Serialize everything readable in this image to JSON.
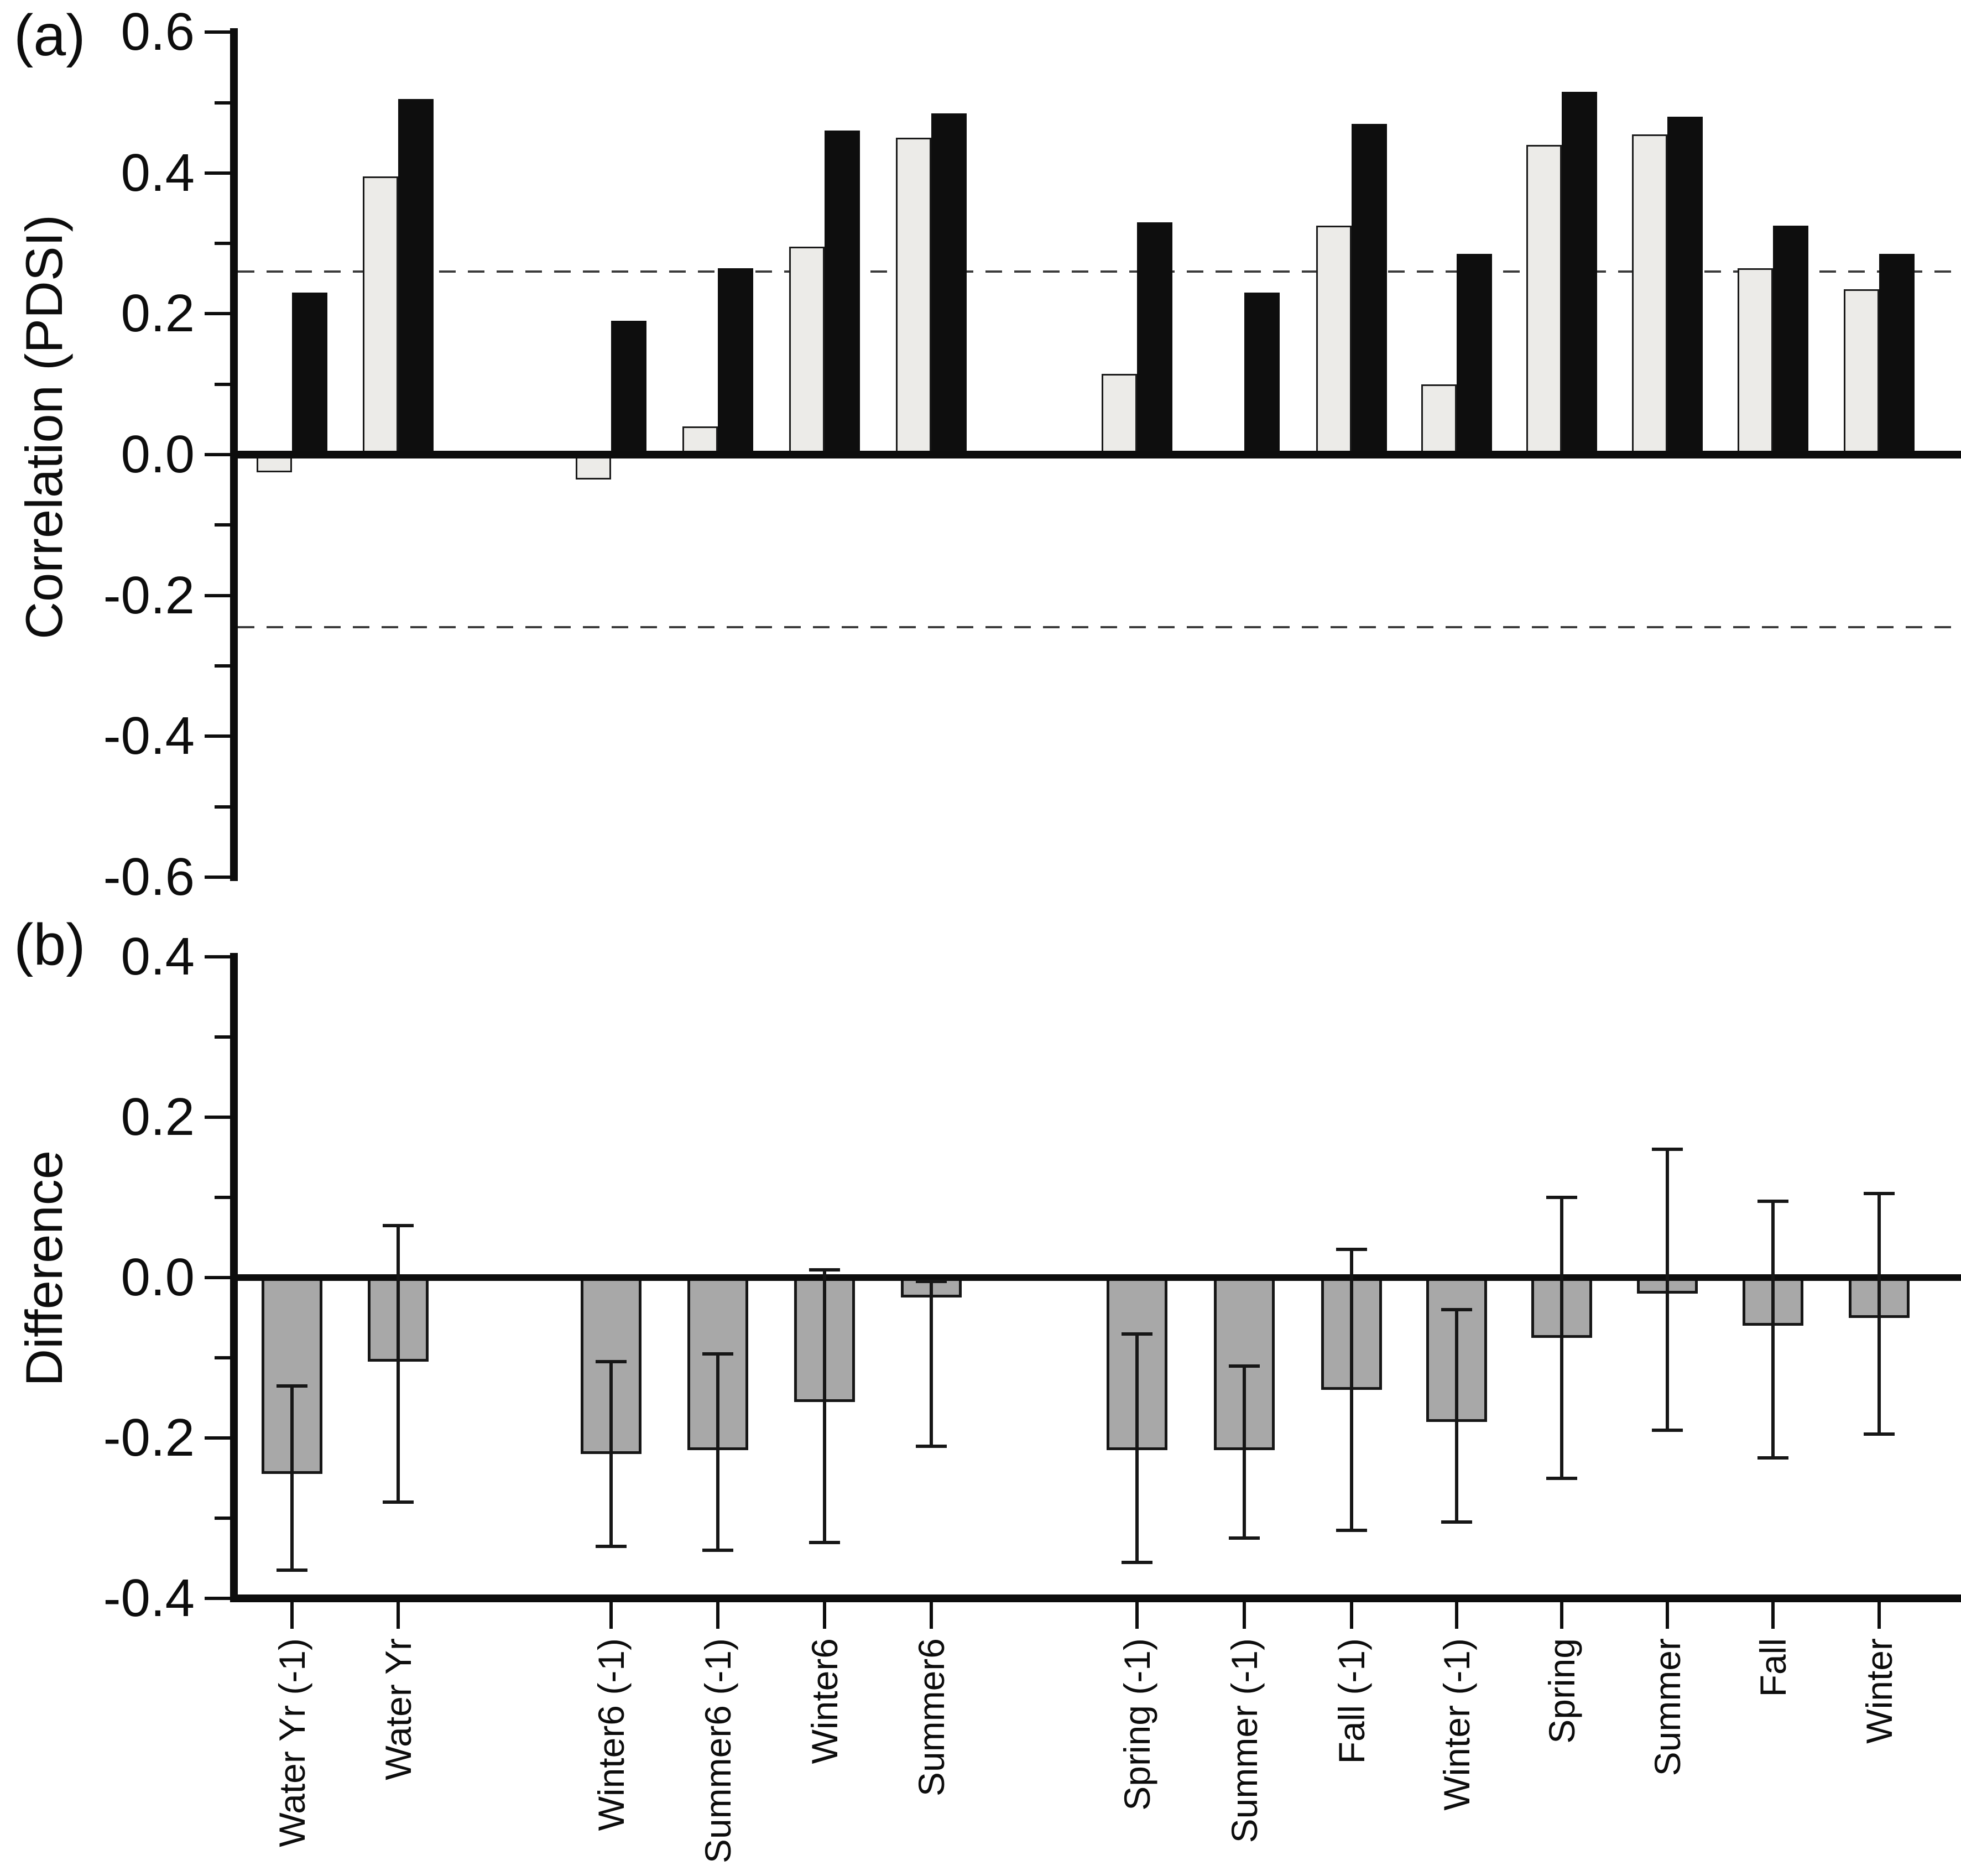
{
  "figure": {
    "background_color": "#ffffff",
    "ink_color": "#0d0d0d"
  },
  "chart_data": [
    {
      "panel": "a",
      "panel_label": "(a)",
      "type": "bar",
      "title": "",
      "xlabel": "",
      "ylabel": "Correlation (PDSI)",
      "ylim": [
        -0.6,
        0.6
      ],
      "ytick_values": [
        0.6,
        0.4,
        0.2,
        0.0,
        -0.2,
        -0.4,
        -0.6
      ],
      "ytick_labels": [
        "0.6",
        "0.4",
        "0.2",
        "0.0",
        "-0.2",
        "-0.4",
        "-0.6"
      ],
      "ytick_minor": [
        0.5,
        0.3,
        0.1,
        -0.1,
        -0.3,
        -0.5
      ],
      "grid": false,
      "legend": "none",
      "significance_lines": [
        0.26,
        -0.245
      ],
      "categories": [
        "Water Yr (-1)",
        "Water Yr",
        "Winter6 (-1)",
        "Summer6 (-1)",
        "Winter6",
        "Summer6",
        "Spring (-1)",
        "Summer (-1)",
        "Fall (-1)",
        "Winter (-1)",
        "Spring",
        "Summer",
        "Fall",
        "Winter"
      ],
      "series": [
        {
          "name": "light-gray-bars",
          "color": "#ECEBE8",
          "values": [
            -0.025,
            0.395,
            -0.035,
            0.04,
            0.295,
            0.45,
            0.115,
            0.0,
            0.325,
            0.1,
            0.44,
            0.455,
            0.265,
            0.235
          ]
        },
        {
          "name": "black-bars",
          "color": "#0E0E0E",
          "values": [
            0.23,
            0.505,
            0.19,
            0.265,
            0.46,
            0.485,
            0.33,
            0.23,
            0.47,
            0.285,
            0.515,
            0.48,
            0.325,
            0.285
          ]
        }
      ]
    },
    {
      "panel": "b",
      "panel_label": "(b)",
      "type": "bar",
      "title": "",
      "xlabel": "",
      "ylabel": "Difference",
      "ylim": [
        -0.4,
        0.4
      ],
      "ytick_values": [
        0.4,
        0.2,
        0.0,
        -0.2,
        -0.4
      ],
      "ytick_labels": [
        "0.4",
        "0.2",
        "0.0",
        "-0.2",
        "-0.4"
      ],
      "ytick_minor": [
        0.3,
        0.1,
        -0.1,
        -0.3
      ],
      "grid": false,
      "legend": "none",
      "categories": [
        "Water Yr (-1)",
        "Water Yr",
        "Winter6 (-1)",
        "Summer6 (-1)",
        "Winter6",
        "Summer6",
        "Spring (-1)",
        "Summer (-1)",
        "Fall (-1)",
        "Winter (-1)",
        "Spring",
        "Summer",
        "Fall",
        "Winter"
      ],
      "series": [
        {
          "name": "difference-bars",
          "color": "#A8A8A8",
          "values": [
            -0.245,
            -0.105,
            -0.22,
            -0.215,
            -0.155,
            -0.025,
            -0.215,
            -0.215,
            -0.14,
            -0.18,
            -0.075,
            -0.02,
            -0.06,
            -0.05
          ]
        }
      ],
      "error_bars": {
        "upper": [
          -0.135,
          0.065,
          -0.105,
          -0.095,
          0.01,
          -0.005,
          -0.07,
          -0.11,
          0.035,
          -0.04,
          0.1,
          0.16,
          0.095,
          0.105
        ],
        "lower": [
          -0.365,
          -0.28,
          -0.335,
          -0.34,
          -0.33,
          -0.21,
          -0.355,
          -0.325,
          -0.315,
          -0.305,
          -0.25,
          -0.19,
          -0.225,
          -0.195
        ]
      }
    }
  ]
}
